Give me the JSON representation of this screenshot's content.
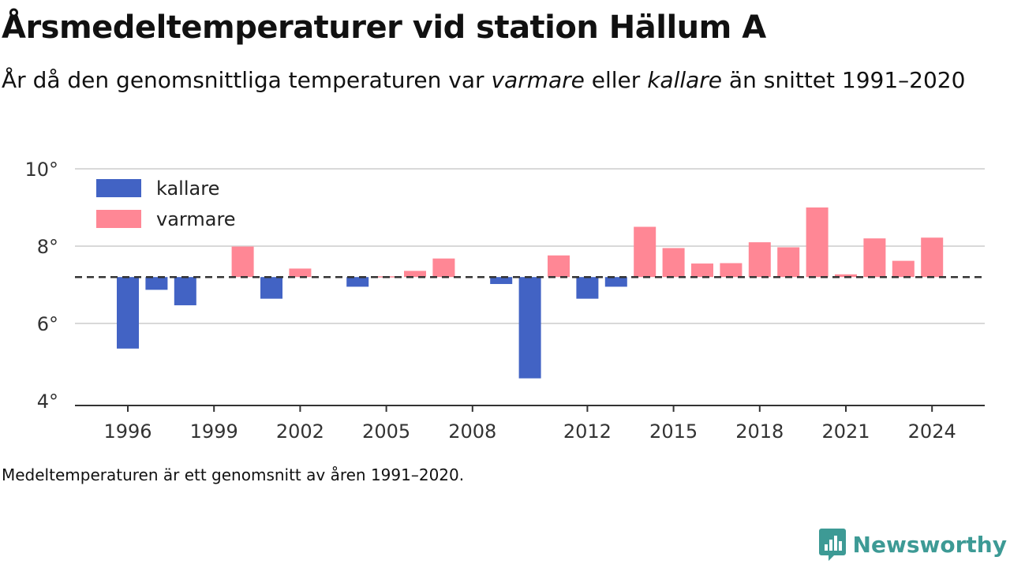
{
  "header": {
    "title": "Årsmedeltemperaturer vid station Hällum A",
    "subtitle_pre": "År då den genomsnittliga temperaturen var ",
    "subtitle_warm": "varmare",
    "subtitle_mid": " eller ",
    "subtitle_cold": "kallare",
    "subtitle_post": " än snittet 1991–2020"
  },
  "footnote": "Medeltemperaturen är ett genomsnitt av åren 1991–2020.",
  "brand": {
    "name": "Newsworthy",
    "icon": "newsworthy-logo-icon",
    "color": "#3d9a95"
  },
  "colors": {
    "kallare": "#4263c4",
    "varmare": "#ff8795",
    "reference_line": "#333333",
    "grid": "#d9d9d9"
  },
  "chart_data": {
    "type": "bar",
    "title": "Årsmedeltemperaturer vid station Hällum A",
    "baseline": 7.2,
    "ylim": [
      4,
      10
    ],
    "yticks": [
      4,
      6,
      8,
      10
    ],
    "ytick_suffix": "°",
    "xticks": [
      1996,
      1999,
      2002,
      2005,
      2008,
      2012,
      2015,
      2018,
      2021,
      2024
    ],
    "legend": {
      "position": "top-left",
      "entries": [
        {
          "key": "kallare",
          "label": "kallare"
        },
        {
          "key": "varmare",
          "label": "varmare"
        }
      ]
    },
    "x": [
      1996,
      1997,
      1998,
      2000,
      2001,
      2002,
      2004,
      2005,
      2006,
      2007,
      2009,
      2010,
      2011,
      2012,
      2013,
      2014,
      2015,
      2016,
      2017,
      2018,
      2019,
      2020,
      2021,
      2022,
      2023,
      2024
    ],
    "values": [
      5.35,
      6.87,
      6.47,
      7.99,
      6.64,
      7.42,
      6.95,
      7.22,
      7.36,
      7.68,
      7.02,
      4.58,
      7.76,
      6.64,
      6.95,
      8.5,
      7.95,
      7.55,
      7.56,
      8.1,
      7.97,
      9.0,
      7.27,
      8.2,
      7.62,
      8.22
    ],
    "series": [
      {
        "name": "kallare",
        "key": "kallare"
      },
      {
        "name": "varmare",
        "key": "varmare"
      }
    ]
  }
}
